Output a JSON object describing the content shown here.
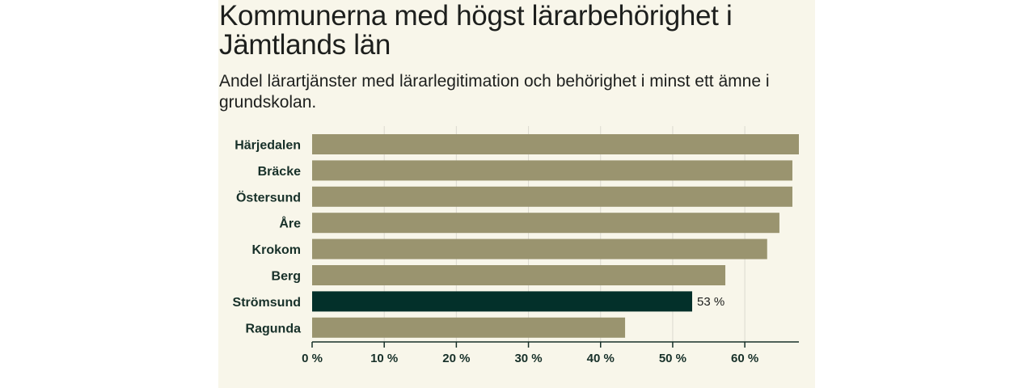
{
  "header": {
    "title": "Kommunerna med högst lärarbehörighet i Jämtlands län",
    "subtitle": "Andel lärartjänster med lärarlegitimation och behörighet i minst ett ämne i grundskolan."
  },
  "colors": {
    "background": "#f8f6ea",
    "bar": "#9a946f",
    "highlight": "#03302a",
    "grid": "#dcdad0",
    "axis": "#173029"
  },
  "chart_data": {
    "type": "bar",
    "orientation": "horizontal",
    "title": "Kommunerna med högst lärarbehörighet i Jämtlands län",
    "subtitle": "Andel lärartjänster med lärarlegitimation och behörighet i minst ett ämne i grundskolan.",
    "categories": [
      "Härjedalen",
      "Bräcke",
      "Östersund",
      "Åre",
      "Krokom",
      "Berg",
      "Strömsund",
      "Ragunda"
    ],
    "values": [
      67.5,
      66.6,
      66.6,
      64.8,
      63.1,
      57.3,
      52.7,
      43.4
    ],
    "highlight_index": 6,
    "data_labels": [
      {
        "index": 6,
        "text": "53 %"
      }
    ],
    "xlim": [
      0,
      67.5
    ],
    "ticks": [
      0,
      10,
      20,
      30,
      40,
      50,
      60
    ],
    "tick_labels": [
      "0 %",
      "10 %",
      "20 %",
      "30 %",
      "40 %",
      "50 %",
      "60 %"
    ],
    "grid": true,
    "xlabel": "",
    "ylabel": ""
  }
}
